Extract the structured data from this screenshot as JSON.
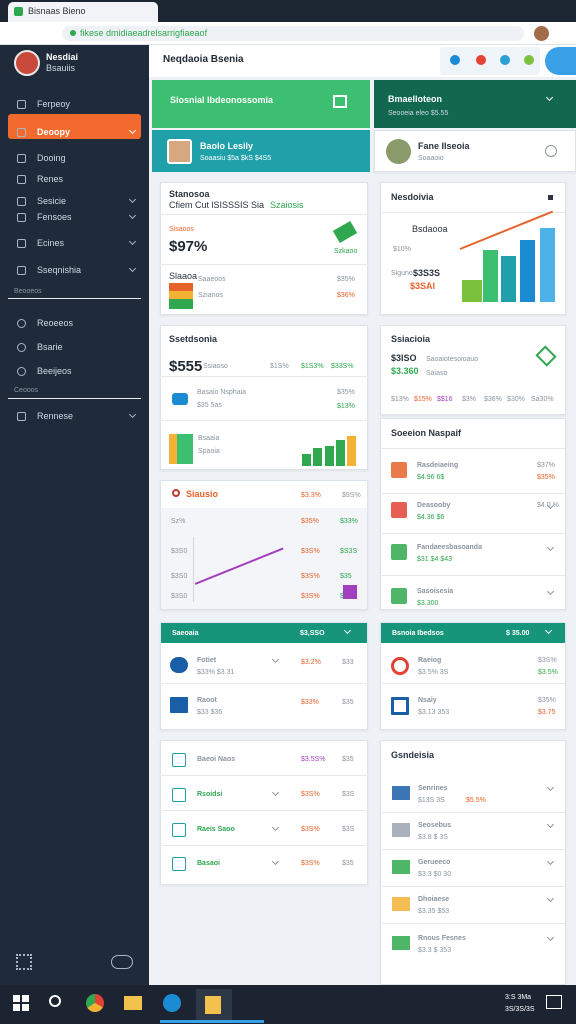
{
  "browser": {
    "tab": "Bisnaas Bieno",
    "url": "fikese dmidiaeadrelsarrigfiaeaof"
  },
  "sidebar": {
    "user": "Nesdiai",
    "role": "Bsauiis",
    "menu": [
      "Ferpeoy",
      "Deoopy",
      "Dooing",
      "Renes",
      "Sesicie",
      "Fensoes",
      "Ecines",
      "Sseqnishia"
    ],
    "section": "Beooeos",
    "menu2": [
      "Reoeeos",
      "Bsarie",
      "Beeijeos"
    ],
    "section2": "Ceooos",
    "menu3": [
      "Rennese"
    ]
  },
  "header": {
    "title": "Neqdaoia Bsenia"
  },
  "banner_left": {
    "title": "Siosnial Ibdeonossomia"
  },
  "banner_right": {
    "title": "Bmaelloteon",
    "subtitle": "Seooeia eleo $5.55"
  },
  "profile_left": {
    "name": "Baolo Lesily",
    "detail": "Soaasiu $5a $kS $4S5"
  },
  "profile_right": {
    "name": "Fane Ilseoia",
    "detail": "Soaaoio"
  },
  "card1": {
    "title": "Stanosoa",
    "subtitle": "Cfiem Cut lSISSSIS Sia",
    "tag": "Szaiosis",
    "label": "Sisaoos",
    "value": "$97%",
    "note": "Szkaoo",
    "row1": [
      "Slaaoa",
      "Saaeoos",
      "$35%"
    ],
    "row2": [
      "Szianos",
      "$36%"
    ]
  },
  "card2": {
    "title": "Nesdoivia",
    "legend": "Bsdaooa",
    "labels": [
      "$10%",
      "$3S3S",
      "Sigunos",
      "$3SAI"
    ]
  },
  "card3": {
    "title": "Ssetdsonia",
    "value": "$555",
    "caption": "Ssiaoso",
    "stats": [
      "$1S%",
      "$1S3%",
      "$33S%"
    ],
    "item": "Basaio Nsphaia",
    "item_detail": "$35 5as",
    "item_stats": [
      "$35%",
      "$13%"
    ],
    "footer": "Bsaaia",
    "footer_detail": "Spaoia"
  },
  "card4": {
    "title": "Ssiacioia",
    "value": "$3ISO",
    "caption": "Saoaiotesoioauo",
    "value2": "$3.360",
    "caption2": "Saiaso",
    "stats": [
      "$13%",
      "$15%",
      "$$16",
      "$3%",
      "$36%",
      "$30%",
      "Sa30%"
    ]
  },
  "card5": {
    "title": "Soeeion Naspaif",
    "rows": [
      [
        "Rasdeiaeing",
        "$4.96 6$",
        "$37%",
        "$35%"
      ],
      [
        "Deasooby",
        "$4.36 $6",
        "$4.0 %"
      ],
      [
        "Fandaeesbasoanda",
        "$31 $4 $43"
      ],
      [
        "Sasoisesia",
        "$3.300"
      ]
    ]
  },
  "card6": {
    "title": "Siausio",
    "head": [
      "$3.3%",
      "$9S%"
    ],
    "rows": [
      [
        "Sz%",
        "$35%",
        "$33%"
      ],
      [
        "$3S0",
        "$3S%",
        "$S3S"
      ],
      [
        "$3S0",
        "$3S%",
        "$35"
      ],
      [
        "$3S0",
        "$3S%",
        "$3S"
      ]
    ]
  },
  "card7": {
    "title": "Saeoaia",
    "amount": "$3,SSO",
    "rows": [
      [
        "Fotiet",
        "$33% $3.31",
        "$3.2%",
        "$33"
      ],
      [
        "Raoot",
        "$33 $36",
        "$33%",
        "$35"
      ]
    ]
  },
  "card8": {
    "title": "Bsnoia Ibedsos",
    "amount": "$ 35.00",
    "rows": [
      [
        "Raeiog",
        "$3.5% 3S",
        "$3S%",
        "$3.5%"
      ],
      [
        "Nsaiy",
        "$3.13 353",
        "$35%",
        "$3.75"
      ]
    ]
  },
  "card9": {
    "rows": [
      [
        "Baeoi Naos",
        "$3.5S%",
        "$35"
      ],
      [
        "Rsoidsi",
        "$3S%",
        "$3S"
      ],
      [
        "Raeis Saoo",
        "$3S%",
        "$3S"
      ],
      [
        "Basaoi",
        "$3S%",
        "$35"
      ]
    ]
  },
  "card10": {
    "title": "Gsndeisia",
    "rows": [
      [
        "Senrines",
        "$13S 3S",
        "$5.5%"
      ],
      [
        "Seosebus",
        "$3.8 $ 3S"
      ],
      [
        "Gerueeco",
        "$3.3 $0 30"
      ],
      [
        "Dhoiaese",
        "$3.35 $53"
      ],
      [
        "Rnous Fesnes",
        "$3.3 $ 353"
      ]
    ]
  },
  "taskbar": {
    "time": "3:S 3Ma",
    "date": "3S/3S/3S"
  }
}
